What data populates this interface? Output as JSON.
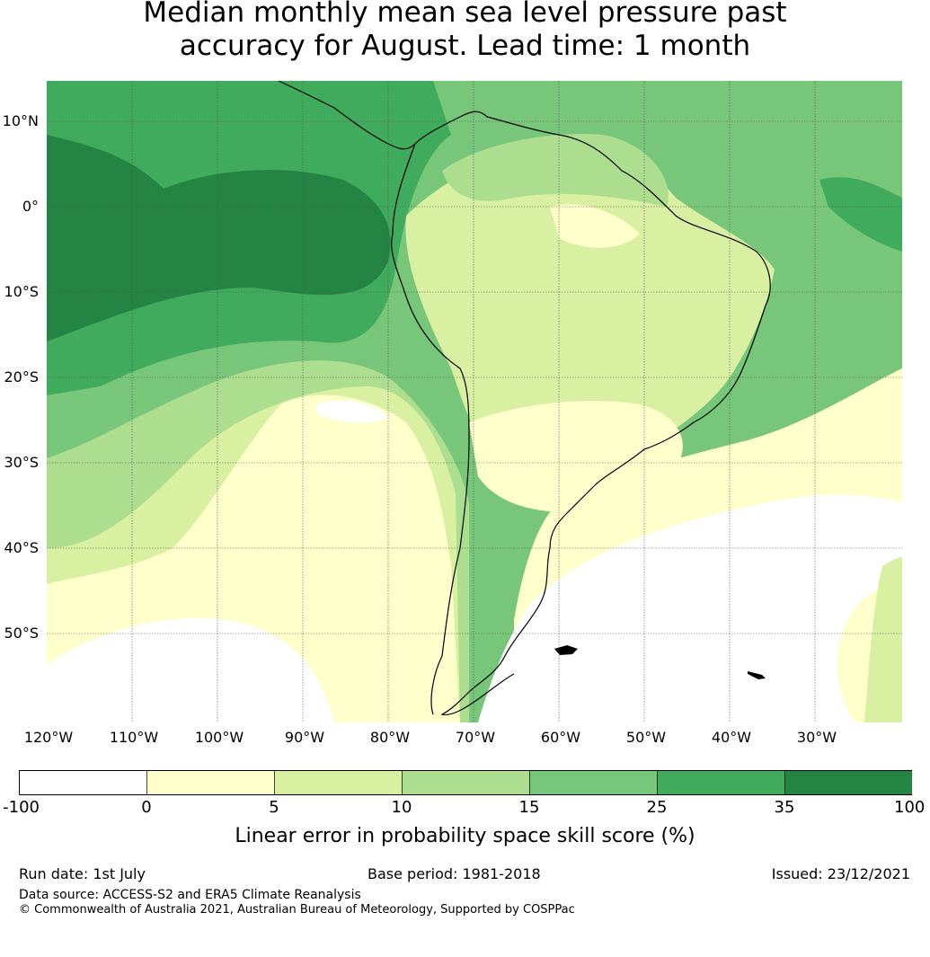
{
  "title": {
    "line1": "Median monthly mean sea level pressure past",
    "line2": "accuracy for August. Lead time: 1 month"
  },
  "map": {
    "lat_labels": [
      "10°N",
      "0°",
      "10°S",
      "20°S",
      "30°S",
      "40°S",
      "50°S"
    ],
    "lon_labels": [
      "120°W",
      "110°W",
      "100°W",
      "90°W",
      "80°W",
      "70°W",
      "60°W",
      "50°W",
      "40°W",
      "30°W"
    ]
  },
  "colorbar": {
    "ticks": [
      "-100",
      "0",
      "5",
      "10",
      "15",
      "25",
      "35",
      "100"
    ],
    "colors": [
      "#ffffff",
      "#ffffcc",
      "#d9f0a3",
      "#addd8e",
      "#78c679",
      "#41ab5d",
      "#238443"
    ],
    "label": "Linear error in probability space skill score (%)"
  },
  "footer": {
    "run_date": "Run date: 1st July",
    "base_period": "Base period: 1981-2018",
    "issued": "Issued: 23/12/2021",
    "data_source": "Data source: ACCESS-S2 and ERA5 Climate Reanalysis",
    "copyright": "© Commonwealth of Australia 2021, Australian Bureau of Meteorology, Supported by COSPPac"
  }
}
